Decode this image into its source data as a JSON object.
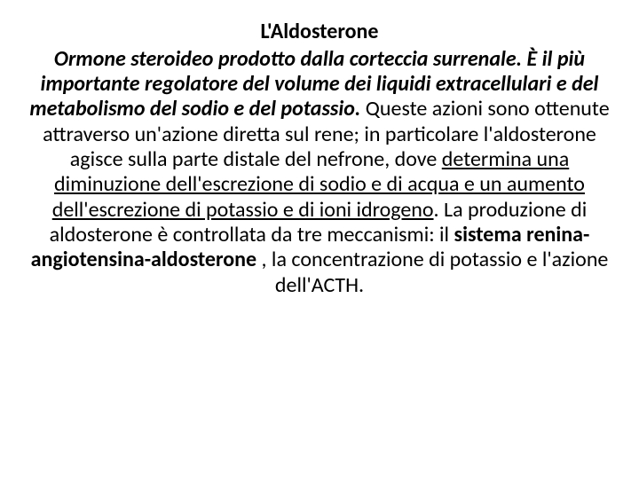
{
  "title": "L'Aldosterone",
  "p1_bi": "Ormone steroideo prodotto dalla corteccia surrenale. È il più importante regolatore del volume dei liquidi extracellulari e del metabolismo del sodio e del potassio.",
  "p2_a": " Queste azioni sono ottenute attraverso un'azione diretta sul rene; in particolare l'aldosterone agisce sulla parte distale del nefrone, dove ",
  "p2_u": "determina una diminuzione dell'escrezione di sodio e di acqua e un aumento dell'escrezione di potassio e di ioni idrogeno",
  "p2_b": ". La produzione di aldosterone è controllata da tre meccanismi: il ",
  "p2_bold": "sistema renina-angiotensina-aldosterone",
  "p2_c": " , la concentrazione di potassio e l'azione dell'ACTH."
}
